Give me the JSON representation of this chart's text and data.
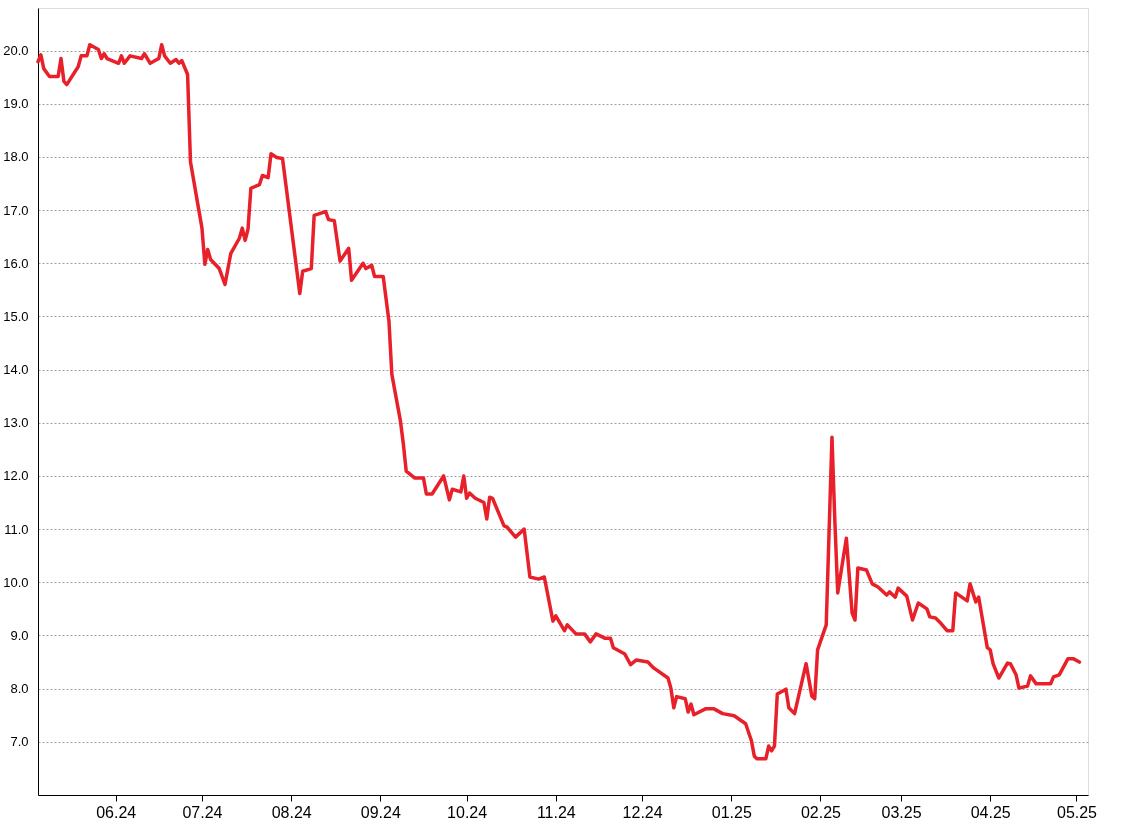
{
  "chart_data": {
    "type": "line",
    "grid": "y",
    "legend": false,
    "line_style": "solid",
    "xlim": [
      "2024-05-05",
      "2025-05-05"
    ],
    "ylim": [
      6.0,
      20.8
    ],
    "xticks": [
      {
        "value": "2024-06-01",
        "label": "06.24"
      },
      {
        "value": "2024-07-01",
        "label": "07.24"
      },
      {
        "value": "2024-08-01",
        "label": "08.24"
      },
      {
        "value": "2024-09-01",
        "label": "09.24"
      },
      {
        "value": "2024-10-01",
        "label": "10.24"
      },
      {
        "value": "2024-11-01",
        "label": "11.24"
      },
      {
        "value": "2024-12-01",
        "label": "12.24"
      },
      {
        "value": "2025-01-01",
        "label": "01.25"
      },
      {
        "value": "2025-02-01",
        "label": "02.25"
      },
      {
        "value": "2025-03-01",
        "label": "03.25"
      },
      {
        "value": "2025-04-01",
        "label": "04.25"
      },
      {
        "value": "2025-05-01",
        "label": "05.25"
      }
    ],
    "yticks": [
      {
        "value": 7,
        "label": "7.0"
      },
      {
        "value": 8,
        "label": "8.0"
      },
      {
        "value": 9,
        "label": "9.0"
      },
      {
        "value": 10,
        "label": "10.0"
      },
      {
        "value": 11,
        "label": "11.0"
      },
      {
        "value": 12,
        "label": "12.0"
      },
      {
        "value": 13,
        "label": "13.0"
      },
      {
        "value": 14,
        "label": "14.0"
      },
      {
        "value": 15,
        "label": "15.0"
      },
      {
        "value": 16,
        "label": "16.0"
      },
      {
        "value": 17,
        "label": "17.0"
      },
      {
        "value": 18,
        "label": "18.0"
      },
      {
        "value": 19,
        "label": "19.0"
      },
      {
        "value": 20,
        "label": "20.0"
      }
    ],
    "x": [
      "2024-05-05",
      "2024-05-06",
      "2024-05-07",
      "2024-05-09",
      "2024-05-12",
      "2024-05-13",
      "2024-05-14",
      "2024-05-15",
      "2024-05-19",
      "2024-05-20",
      "2024-05-22",
      "2024-05-23",
      "2024-05-26",
      "2024-05-27",
      "2024-05-28",
      "2024-05-29",
      "2024-06-02",
      "2024-06-03",
      "2024-06-04",
      "2024-06-06",
      "2024-06-10",
      "2024-06-11",
      "2024-06-13",
      "2024-06-16",
      "2024-06-17",
      "2024-06-18",
      "2024-06-20",
      "2024-06-22",
      "2024-06-23",
      "2024-06-24",
      "2024-06-26",
      "2024-06-27",
      "2024-06-30",
      "2024-07-01",
      "2024-07-02",
      "2024-07-03",
      "2024-07-04",
      "2024-07-07",
      "2024-07-09",
      "2024-07-11",
      "2024-07-14",
      "2024-07-15",
      "2024-07-16",
      "2024-07-17",
      "2024-07-18",
      "2024-07-21",
      "2024-07-22",
      "2024-07-24",
      "2024-07-25",
      "2024-07-27",
      "2024-07-29",
      "2024-08-04",
      "2024-08-05",
      "2024-08-08",
      "2024-08-09",
      "2024-08-13",
      "2024-08-14",
      "2024-08-16",
      "2024-08-18",
      "2024-08-21",
      "2024-08-22",
      "2024-08-26",
      "2024-08-27",
      "2024-08-29",
      "2024-08-30",
      "2024-09-02",
      "2024-09-04",
      "2024-09-05",
      "2024-09-08",
      "2024-09-09",
      "2024-09-10",
      "2024-09-13",
      "2024-09-16",
      "2024-09-17",
      "2024-09-19",
      "2024-09-23",
      "2024-09-25",
      "2024-09-26",
      "2024-09-29",
      "2024-09-30",
      "2024-10-01",
      "2024-10-02",
      "2024-10-04",
      "2024-10-07",
      "2024-10-08",
      "2024-10-09",
      "2024-10-10",
      "2024-10-14",
      "2024-10-15",
      "2024-10-18",
      "2024-10-21",
      "2024-10-23",
      "2024-10-26",
      "2024-10-28",
      "2024-10-31",
      "2024-11-01",
      "2024-11-04",
      "2024-11-05",
      "2024-11-08",
      "2024-11-11",
      "2024-11-13",
      "2024-11-15",
      "2024-11-18",
      "2024-11-20",
      "2024-11-21",
      "2024-11-25",
      "2024-11-27",
      "2024-11-29",
      "2024-12-03",
      "2024-12-05",
      "2024-12-10",
      "2024-12-11",
      "2024-12-12",
      "2024-12-13",
      "2024-12-16",
      "2024-12-17",
      "2024-12-18",
      "2024-12-19",
      "2024-12-23",
      "2024-12-26",
      "2024-12-29",
      "2025-01-02",
      "2025-01-06",
      "2025-01-08",
      "2025-01-09",
      "2025-01-10",
      "2025-01-13",
      "2025-01-14",
      "2025-01-15",
      "2025-01-16",
      "2025-01-17",
      "2025-01-20",
      "2025-01-21",
      "2025-01-23",
      "2025-01-27",
      "2025-01-29",
      "2025-01-30",
      "2025-01-31",
      "2025-02-03",
      "2025-02-05",
      "2025-02-06",
      "2025-02-07",
      "2025-02-10",
      "2025-02-12",
      "2025-02-13",
      "2025-02-14",
      "2025-02-17",
      "2025-02-19",
      "2025-02-21",
      "2025-02-24",
      "2025-02-25",
      "2025-02-27",
      "2025-02-28",
      "2025-03-03",
      "2025-03-05",
      "2025-03-07",
      "2025-03-10",
      "2025-03-11",
      "2025-03-13",
      "2025-03-15",
      "2025-03-17",
      "2025-03-19",
      "2025-03-20",
      "2025-03-24",
      "2025-03-25",
      "2025-03-27",
      "2025-03-28",
      "2025-03-31",
      "2025-04-01",
      "2025-04-02",
      "2025-04-04",
      "2025-04-07",
      "2025-04-08",
      "2025-04-10",
      "2025-04-11",
      "2025-04-14",
      "2025-04-15",
      "2025-04-17",
      "2025-04-22",
      "2025-04-23",
      "2025-04-25",
      "2025-04-28",
      "2025-04-30",
      "2025-05-02"
    ],
    "series": [
      {
        "color": "#e8202a",
        "values": [
          19.79,
          19.92,
          19.66,
          19.51,
          19.51,
          19.85,
          19.42,
          19.36,
          19.7,
          19.9,
          19.9,
          20.11,
          20.02,
          19.85,
          19.94,
          19.85,
          19.76,
          19.9,
          19.76,
          19.9,
          19.85,
          19.94,
          19.76,
          19.85,
          20.11,
          19.9,
          19.76,
          19.83,
          19.76,
          19.81,
          19.55,
          17.91,
          16.97,
          16.66,
          15.98,
          16.26,
          16.07,
          15.9,
          15.6,
          16.18,
          16.47,
          16.66,
          16.43,
          16.64,
          17.41,
          17.48,
          17.65,
          17.61,
          18.06,
          17.99,
          17.97,
          15.43,
          15.85,
          15.9,
          16.9,
          16.97,
          16.82,
          16.8,
          16.04,
          16.28,
          15.68,
          16.0,
          15.9,
          15.96,
          15.75,
          15.75,
          14.91,
          13.91,
          13.03,
          12.6,
          12.09,
          11.96,
          11.96,
          11.66,
          11.66,
          12.0,
          11.55,
          11.75,
          11.7,
          12.0,
          11.58,
          11.68,
          11.58,
          11.5,
          11.19,
          11.6,
          11.58,
          11.06,
          11.04,
          10.85,
          11.0,
          10.1,
          10.06,
          10.1,
          9.27,
          9.37,
          9.09,
          9.2,
          9.03,
          9.03,
          8.88,
          9.03,
          8.95,
          8.95,
          8.77,
          8.65,
          8.45,
          8.54,
          8.5,
          8.39,
          8.2,
          8.01,
          7.64,
          7.85,
          7.81,
          7.56,
          7.71,
          7.51,
          7.62,
          7.62,
          7.53,
          7.49,
          7.34,
          7.02,
          6.73,
          6.68,
          6.68,
          6.92,
          6.83,
          6.92,
          7.9,
          7.99,
          7.64,
          7.53,
          8.47,
          7.86,
          7.81,
          8.73,
          9.2,
          12.73,
          11.15,
          9.8,
          10.83,
          9.42,
          9.29,
          10.27,
          10.23,
          9.97,
          9.91,
          9.76,
          9.82,
          9.72,
          9.89,
          9.74,
          9.29,
          9.61,
          9.5,
          9.35,
          9.33,
          9.22,
          9.09,
          9.09,
          9.8,
          9.65,
          9.97,
          9.63,
          9.72,
          8.77,
          8.73,
          8.47,
          8.2,
          8.48,
          8.47,
          8.26,
          8.01,
          8.05,
          8.24,
          8.09,
          8.09,
          8.22,
          8.26,
          8.56,
          8.56,
          8.5
        ]
      }
    ]
  }
}
